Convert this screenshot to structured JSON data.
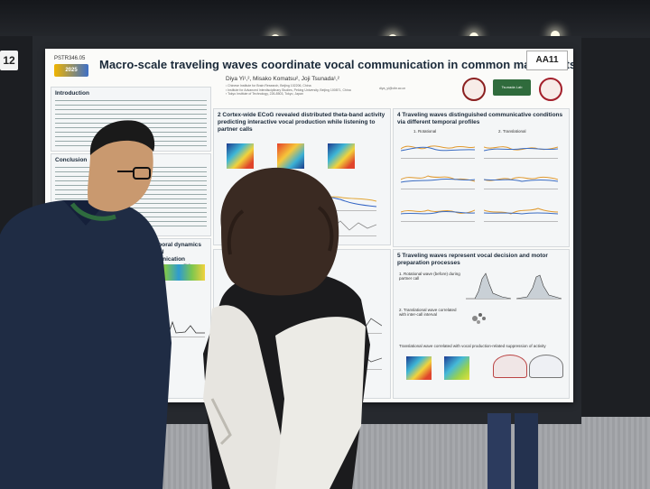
{
  "scene": {
    "description_tag": "poster session photo",
    "booth_tag_left": "12",
    "booth_tag_right": "AA11"
  },
  "poster": {
    "id": "PSTR346.05",
    "conference_logo_text": "2025",
    "title": "Macro-scale traveling waves coordinate vocal communication in common marmosets",
    "authors": "Diya Yi¹,², Misako Komatsu², Joji Tsunada¹,²",
    "affiliations": [
      "¹ Chinese Institute for Brain Research, Beijing 102206, China",
      "² Institute for Advanced Interdisciplinary Studies, Peking University, Beijing 100871, China",
      "³ Tokyo Institute of Technology, 226-8503, Tokyo, Japan"
    ],
    "email": "diya_yi@cibr.ac.cn",
    "lab_logo": "Tsunada Lab",
    "sections": {
      "intro": {
        "heading": "Introduction"
      },
      "conclusion": {
        "heading": "Conclusion"
      },
      "s2": {
        "heading": "2 Cortex-wide ECoG revealed distributed theta-band activity predicting interactive vocal production while listening to partner calls"
      },
      "s3": {
        "heading": "3 Temporal dynamics of vocal communication predictive conditions."
      },
      "s4": {
        "heading": "4 Traveling waves distinguished communicative conditions via different temporal profiles",
        "label_rotational": "1. Rotational",
        "label_translational": "2. Translational"
      },
      "s5": {
        "heading": "5 Traveling waves represent vocal decision and motor preparation processes",
        "item1": "1. Rotational wave (before) during partner call",
        "item2": "2. Translational wave correlated with inter-call interval",
        "item3": "Translational wave correlated with vocal production-related suppression of activity"
      }
    }
  },
  "colors": {
    "title": "#1b2a3a",
    "poster_bg": "#fbfbf9",
    "section_bg": "#f4f6f7"
  }
}
